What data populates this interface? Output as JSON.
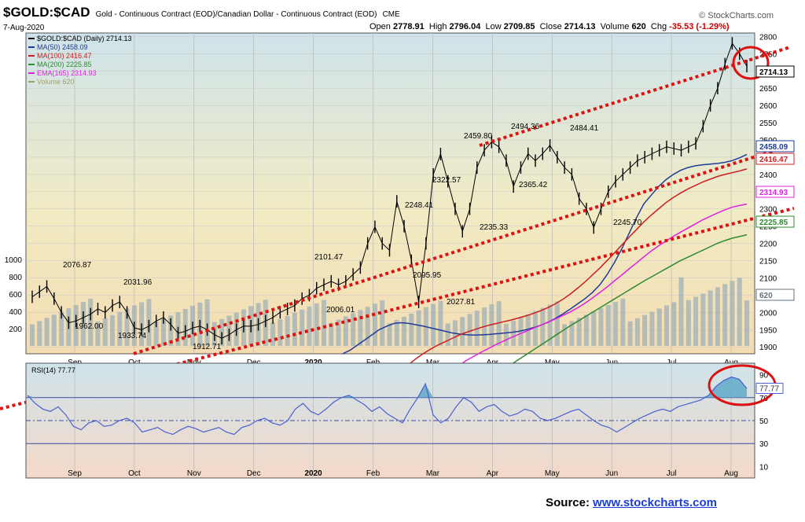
{
  "header": {
    "symbol": "$GOLD:$CAD",
    "description": "Gold - Continuous Contract (EOD)/Canadian Dollar - Continuous Contract (EOD)",
    "exchange": "CME",
    "date": "7-Aug-2020",
    "brand": "© StockCharts.com",
    "open_label": "Open",
    "open": "2778.91",
    "high_label": "High",
    "high": "2796.04",
    "low_label": "Low",
    "low": "2709.85",
    "close_label": "Close",
    "close": "2714.13",
    "volume_label": "Volume",
    "volume": "620",
    "chg_label": "Chg",
    "chg": "-35.53 (-1.29%)"
  },
  "legend": [
    {
      "text": "$GOLD:$CAD (Daily) 2714.13",
      "color": "#000000"
    },
    {
      "text": "MA(50) 2458.09",
      "color": "#1f3c9a"
    },
    {
      "text": "MA(100) 2416.47",
      "color": "#cc1f1f"
    },
    {
      "text": "MA(200) 2225.85",
      "color": "#2e8b2e"
    },
    {
      "text": "EMA(165) 2314.93",
      "color": "#e020e0"
    },
    {
      "text": "Volume 620",
      "color": "#a0a070"
    }
  ],
  "rsi_legend": "RSI(14) 77.77",
  "source": {
    "label": "Source:",
    "link": "www.stockcharts.com"
  },
  "chart_data": [
    {
      "type": "line",
      "title": "$GOLD:$CAD (Daily) 2714.13",
      "x_labels": [
        "Sep",
        "Oct",
        "Nov",
        "Dec",
        "2020",
        "Feb",
        "Mar",
        "Apr",
        "May",
        "Jun",
        "Jul",
        "Aug"
      ],
      "yticks_right": [
        1900,
        1950,
        2000,
        2050,
        2100,
        2150,
        2200,
        2250,
        2300,
        2350,
        2400,
        2450,
        2500,
        2550,
        2600,
        2650,
        2700,
        2750,
        2800
      ],
      "volume_ticks_left": [
        200,
        400,
        600,
        800,
        1000
      ],
      "ylim": [
        1880,
        2810
      ],
      "price": [
        2045,
        2060,
        2075,
        2040,
        2000,
        1970,
        1975,
        1985,
        1995,
        2010,
        2000,
        2020,
        2030,
        2000,
        1955,
        1950,
        1960,
        1975,
        1985,
        1965,
        1940,
        1945,
        1955,
        1960,
        1950,
        1935,
        1925,
        1935,
        1950,
        1960,
        1960,
        1965,
        1975,
        1985,
        2000,
        2010,
        2020,
        2040,
        2050,
        2070,
        2080,
        2090,
        2080,
        2090,
        2110,
        2130,
        2200,
        2248,
        2200,
        2180,
        2322,
        2250,
        2150,
        2030,
        2200,
        2400,
        2459,
        2380,
        2300,
        2235,
        2300,
        2420,
        2470,
        2494,
        2480,
        2440,
        2365,
        2420,
        2460,
        2440,
        2460,
        2484,
        2450,
        2420,
        2400,
        2330,
        2300,
        2246,
        2300,
        2350,
        2380,
        2400,
        2420,
        2440,
        2450,
        2460,
        2470,
        2480,
        2475,
        2470,
        2480,
        2490,
        2540,
        2600,
        2650,
        2720,
        2780,
        2750,
        2714
      ],
      "series": [
        {
          "name": "MA(50)",
          "color": "#1f3c9a",
          "values": [
            1880,
            1890,
            1905,
            1920,
            1935,
            1950,
            1960,
            1968,
            1970,
            1968,
            1964,
            1960,
            1955,
            1950,
            1945,
            1940,
            1937,
            1935,
            1934,
            1935,
            1936,
            1938,
            1940,
            1942,
            1945,
            1950,
            1956,
            1963,
            1972,
            1983,
            1996,
            2010,
            2025,
            2040,
            2058,
            2080,
            2110,
            2145,
            2185,
            2230,
            2275,
            2315,
            2340,
            2365,
            2385,
            2400,
            2412,
            2420,
            2425,
            2428,
            2430,
            2432,
            2435,
            2440,
            2448,
            2458
          ]
        },
        {
          "name": "MA(100)",
          "color": "#cc1f1f",
          "values": [
            1750,
            1770,
            1790,
            1810,
            1830,
            1848,
            1865,
            1880,
            1893,
            1905,
            1915,
            1925,
            1935,
            1943,
            1950,
            1957,
            1963,
            1968,
            1973,
            1978,
            1984,
            1990,
            1997,
            2005,
            2014,
            2025,
            2038,
            2053,
            2070,
            2088,
            2108,
            2128,
            2150,
            2172,
            2195,
            2218,
            2240,
            2262,
            2282,
            2300,
            2318,
            2333,
            2346,
            2358,
            2368,
            2378,
            2386,
            2394,
            2400,
            2405,
            2410,
            2416
          ]
        },
        {
          "name": "MA(200)",
          "color": "#2e8b2e",
          "values": [
            1700,
            1710,
            1720,
            1730,
            1740,
            1752,
            1765,
            1778,
            1792,
            1806,
            1820,
            1834,
            1848,
            1862,
            1876,
            1890,
            1904,
            1918,
            1932,
            1946,
            1960,
            1973,
            1986,
            1999,
            2012,
            2025,
            2038,
            2051,
            2064,
            2077,
            2090,
            2102,
            2114,
            2126,
            2138,
            2150,
            2160,
            2170,
            2180,
            2190,
            2200,
            2208,
            2215,
            2220,
            2225
          ]
        },
        {
          "name": "EMA(165)",
          "color": "#e020e0",
          "values": [
            1800,
            1815,
            1830,
            1845,
            1860,
            1872,
            1884,
            1895,
            1906,
            1916,
            1926,
            1935,
            1944,
            1953,
            1962,
            1971,
            1980,
            1990,
            2000,
            2012,
            2025,
            2040,
            2056,
            2072,
            2090,
            2107,
            2125,
            2142,
            2160,
            2177,
            2192,
            2206,
            2220,
            2232,
            2244,
            2256,
            2268,
            2278,
            2288,
            2297,
            2305,
            2310,
            2314
          ]
        }
      ],
      "annotations": [
        "2076.87",
        "1962.00",
        "2031.96",
        "1933.74",
        "1912.71",
        "2101.47",
        "2006.01",
        "2248.41",
        "2095.95",
        "2322.57",
        "2027.81",
        "2459.80",
        "2235.33",
        "2494.36",
        "2365.42",
        "2484.41",
        "2245.70"
      ],
      "price_tags": [
        {
          "text": "2714.13",
          "color": "#000000"
        },
        {
          "text": "2458.09",
          "color": "#1f3c9a"
        },
        {
          "text": "2416.47",
          "color": "#cc1f1f"
        },
        {
          "text": "2314.93",
          "color": "#e020e0"
        },
        {
          "text": "2225.85",
          "color": "#2e8b2e"
        },
        {
          "text": "620",
          "color": "#607080"
        }
      ]
    },
    {
      "type": "line",
      "title": "RSI(14) 77.77",
      "yticks_right": [
        10,
        30,
        50,
        70,
        90
      ],
      "ylim": [
        0,
        100
      ],
      "reference_lines": [
        70,
        50,
        30
      ],
      "values": [
        72,
        65,
        60,
        58,
        62,
        55,
        45,
        42,
        48,
        50,
        45,
        46,
        50,
        52,
        48,
        40,
        42,
        44,
        40,
        38,
        42,
        45,
        43,
        40,
        42,
        44,
        40,
        38,
        44,
        46,
        50,
        52,
        48,
        46,
        50,
        60,
        65,
        58,
        55,
        60,
        66,
        70,
        72,
        68,
        64,
        58,
        62,
        56,
        52,
        48,
        60,
        70,
        82,
        55,
        48,
        52,
        62,
        70,
        66,
        58,
        62,
        64,
        58,
        54,
        56,
        60,
        58,
        52,
        50,
        52,
        55,
        58,
        60,
        55,
        50,
        46,
        44,
        40,
        44,
        48,
        52,
        55,
        58,
        60,
        58,
        62,
        64,
        66,
        68,
        72,
        80,
        85,
        88,
        86,
        78
      ]
    }
  ]
}
